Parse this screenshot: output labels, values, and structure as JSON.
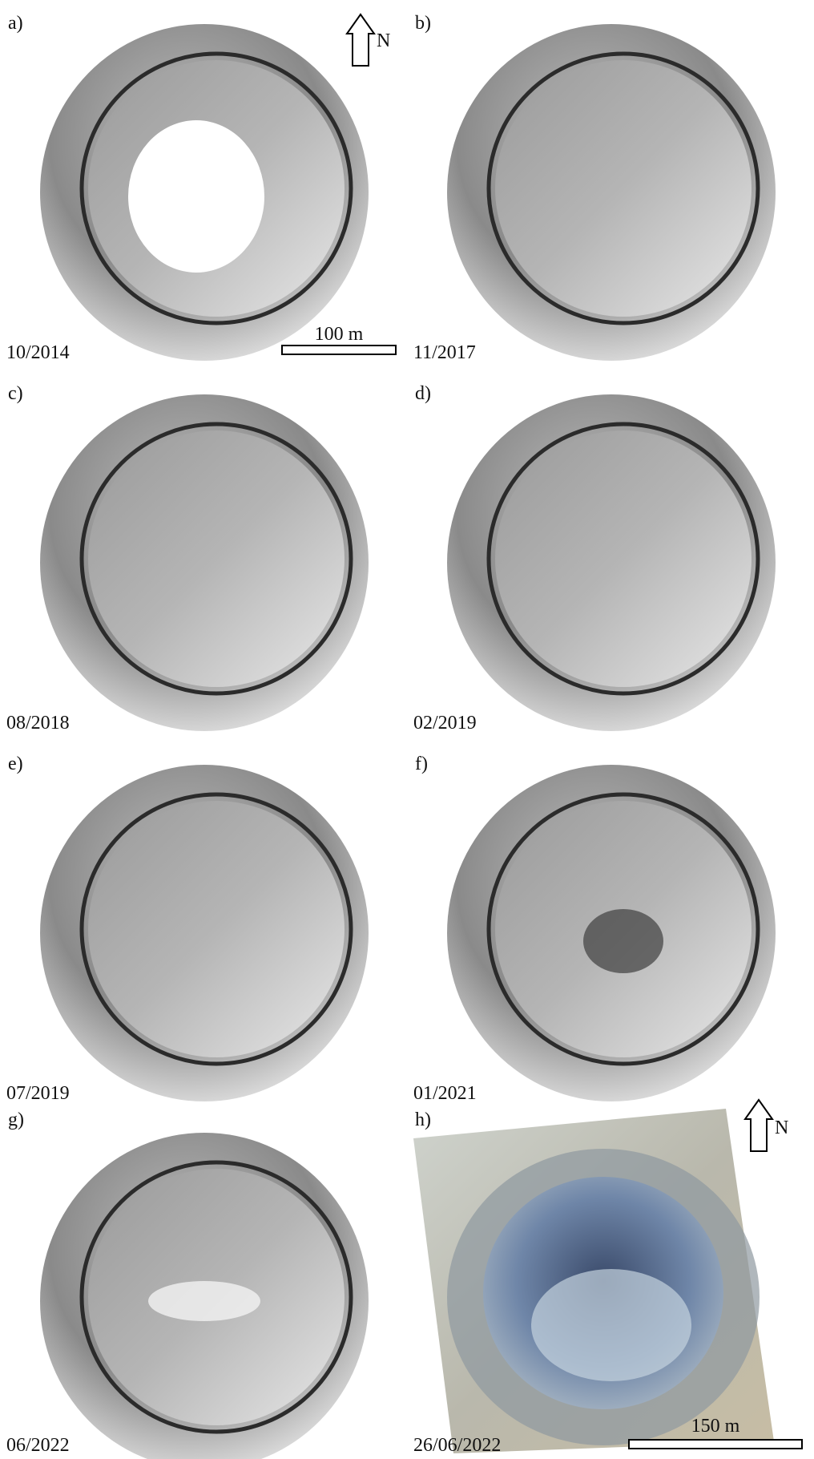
{
  "panels": [
    {
      "label": "a)",
      "date": "10/2014"
    },
    {
      "label": "b)",
      "date": "11/2017"
    },
    {
      "label": "c)",
      "date": "08/2018"
    },
    {
      "label": "d)",
      "date": "02/2019"
    },
    {
      "label": "e)",
      "date": "07/2019"
    },
    {
      "label": "f)",
      "date": "01/2021"
    },
    {
      "label": "g)",
      "date": "06/2022"
    },
    {
      "label": "h)",
      "date": "26/06/2022"
    }
  ],
  "scale_bars": [
    {
      "label": "100 m"
    },
    {
      "label": "150 m"
    }
  ],
  "north_arrows": [
    {
      "label": "N"
    },
    {
      "label": "N"
    }
  ]
}
